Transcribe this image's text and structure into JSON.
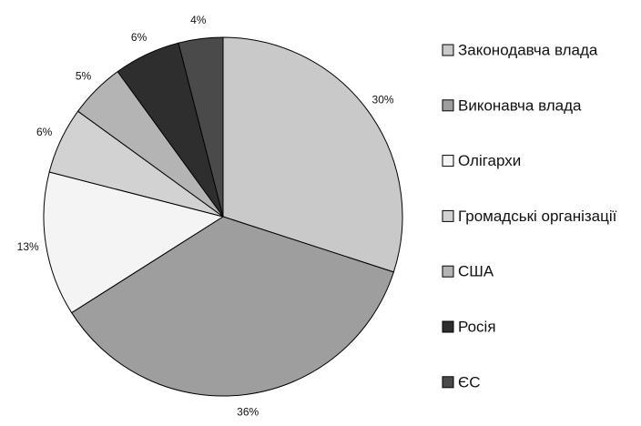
{
  "chart_data": {
    "type": "pie",
    "categories": [
      "Законодавча влада",
      "Виконавча влада",
      "Олігархи",
      "Громадські організації",
      "США",
      "Росія",
      "ЄС"
    ],
    "values": [
      30,
      36,
      13,
      6,
      5,
      6,
      4
    ],
    "value_labels": [
      "30%",
      "36%",
      "13%",
      "6%",
      "5%",
      "6%",
      "4%"
    ],
    "colors": [
      "#c9c9c9",
      "#9e9e9e",
      "#f4f4f4",
      "#d2d2d2",
      "#b4b4b4",
      "#2e2e2e",
      "#4a4a4a"
    ],
    "legend": "right"
  }
}
